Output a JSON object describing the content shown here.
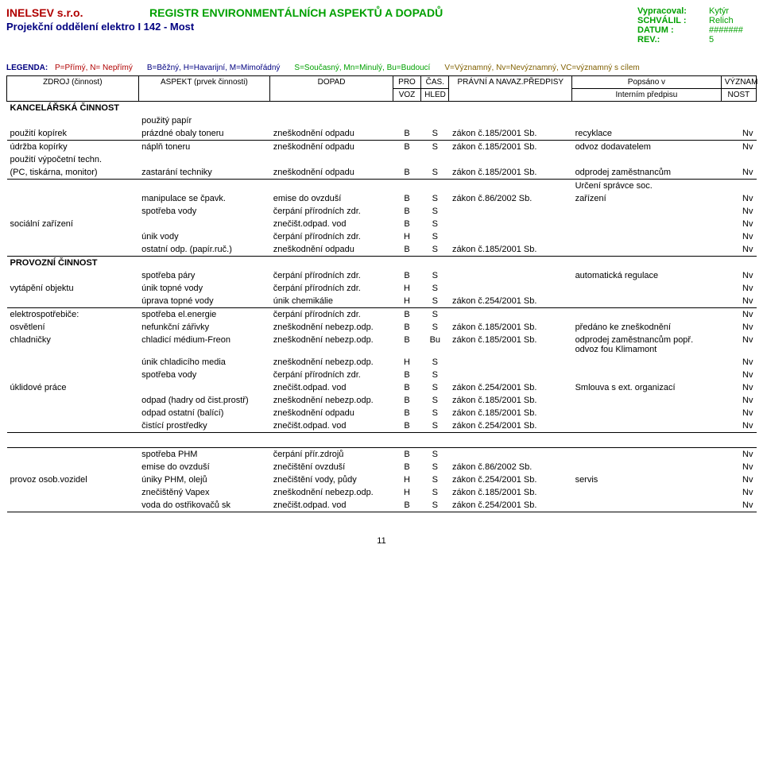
{
  "header": {
    "company": "INELSEV s.r.o.",
    "title": "REGISTR  ENVIRONMENTÁLNÍCH  ASPEKTŮ A DOPADŮ",
    "dept": "Projekční oddělení elektro I 142 - Most",
    "right": [
      {
        "lbl": "Vypracoval:",
        "val": "Kytýr"
      },
      {
        "lbl": "SCHVÁLIL :",
        "val": "Relich"
      },
      {
        "lbl": "DATUM :",
        "val": "#######"
      },
      {
        "lbl": "REV.:",
        "val": "5"
      }
    ],
    "legend_label": "LEGENDA:",
    "legend_parts": [
      {
        "cls": "red",
        "t": "P=Přímý, N= Nepřímý"
      },
      {
        "cls": "blu",
        "t": "B=Běžný, H=Havarijní, M=Mimořádný"
      },
      {
        "cls": "grn",
        "t": "S=Současný, Mn=Minulý, Bu=Budoucí"
      },
      {
        "cls": "brn",
        "t": "V=Významný, Nv=Nevýznamný, VC=významný s cílem"
      }
    ]
  },
  "thead": {
    "zdroj": "ZDROJ (činnost)",
    "aspekt": "ASPEKT (prvek činnosti)",
    "dopad": "DOPAD",
    "pro1": "PRO",
    "pro2": "VOZ",
    "cas1": "ČAS.",
    "cas2": "HLED",
    "prav": "PRÁVNÍ A NAVAZ.PŘEDPISY",
    "pops1": "Popsáno v",
    "pops2": "Interním předpisu",
    "vyz1": "VÝZNAM",
    "vyz2": "NOST"
  },
  "sections": [
    {
      "title": "KANCELÁŘSKÁ ČINNOST",
      "groups": [
        {
          "borderBottom": true,
          "rows": [
            {
              "zdroj": "",
              "aspekt": "použitý papír",
              "dopad": "",
              "pro": "",
              "cas": "",
              "prav": "",
              "pops": "",
              "vyz": ""
            },
            {
              "zdroj": "použití kopírek",
              "aspekt": "prázdné obaly toneru",
              "dopad": "zneškodnění odpadu",
              "pro": "B",
              "cas": "S",
              "prav": "zákon č.185/2001 Sb.",
              "pops": "recyklace",
              "vyz": "Nv"
            }
          ]
        },
        {
          "borderBottom": true,
          "rows": [
            {
              "zdroj": "údržba kopírky",
              "aspekt": "náplň toneru",
              "dopad": "zneškodnění odpadu",
              "pro": "B",
              "cas": "S",
              "prav": "zákon č.185/2001 Sb.",
              "pops": "odvoz dodavatelem",
              "vyz": "Nv"
            },
            {
              "zdroj": "použití výpočetní techn.",
              "aspekt": "",
              "dopad": "",
              "pro": "",
              "cas": "",
              "prav": "",
              "pops": "",
              "vyz": ""
            },
            {
              "zdroj": " (PC, tiskárna, monitor)",
              "aspekt": "zastarání techniky",
              "dopad": "zneškodnění odpadu",
              "pro": "B",
              "cas": "S",
              "prav": "zákon č.185/2001 Sb.",
              "pops": "odprodej zaměstnancům",
              "vyz": "Nv"
            }
          ]
        },
        {
          "borderBottom": true,
          "rows": [
            {
              "zdroj": "",
              "aspekt": "",
              "dopad": "",
              "pro": "",
              "cas": "",
              "prav": "",
              "pops": "Určení správce soc.",
              "vyz": ""
            },
            {
              "zdroj": "",
              "aspekt": "manipulace se čpavk.",
              "dopad": "emise do ovzduší",
              "pro": "B",
              "cas": "S",
              "prav": "zákon č.86/2002 Sb.",
              "pops": "zařízení",
              "vyz": "Nv"
            },
            {
              "zdroj": "",
              "aspekt": "spotřeba vody",
              "dopad": "čerpání přírodních zdr.",
              "pro": "B",
              "cas": "S",
              "prav": "",
              "pops": "",
              "vyz": "Nv"
            },
            {
              "zdroj": "sociální zařízení",
              "aspekt": "",
              "dopad": "znečišt.odpad. vod",
              "pro": "B",
              "cas": "S",
              "prav": "",
              "pops": "",
              "vyz": "Nv"
            },
            {
              "zdroj": "",
              "aspekt": "únik vody",
              "dopad": "čerpání přírodních zdr.",
              "pro": "H",
              "cas": "S",
              "prav": "",
              "pops": "",
              "vyz": "Nv"
            },
            {
              "zdroj": "",
              "aspekt": "ostatní odp. (papír.ruč.)",
              "dopad": "zneškodnění odpadu",
              "pro": "B",
              "cas": "S",
              "prav": "zákon č.185/2001 Sb.",
              "pops": "",
              "vyz": "Nv"
            }
          ]
        }
      ]
    },
    {
      "title": "PROVOZNÍ ČINNOST",
      "groups": [
        {
          "borderBottom": true,
          "rows": [
            {
              "zdroj": "",
              "aspekt": "spotřeba páry",
              "dopad": "čerpání přírodních zdr.",
              "pro": "B",
              "cas": "S",
              "prav": "",
              "pops": "automatická regulace",
              "vyz": "Nv"
            },
            {
              "zdroj": "vytápění objektu",
              "aspekt": "únik topné vody",
              "dopad": "čerpání přírodních zdr.",
              "pro": "H",
              "cas": "S",
              "prav": "",
              "pops": "",
              "vyz": "Nv"
            },
            {
              "zdroj": "",
              "aspekt": "úprava topné vody",
              "dopad": "únik chemikálie",
              "pro": "H",
              "cas": "S",
              "prav": "zákon č.254/2001 Sb.",
              "pops": "",
              "vyz": "Nv"
            }
          ]
        },
        {
          "borderBottom": false,
          "rows": [
            {
              "zdroj": "elektrospotřebiče:",
              "aspekt": "spotřeba el.energie",
              "dopad": "čerpání přírodních zdr.",
              "pro": "B",
              "cas": "S",
              "prav": "",
              "pops": "",
              "vyz": "Nv"
            },
            {
              "zdroj": "osvětlení",
              "aspekt": "nefunkční zářivky",
              "dopad": "zneškodnění nebezp.odp.",
              "pro": "B",
              "cas": "S",
              "prav": "zákon č.185/2001 Sb.",
              "pops": "předáno ke zneškodnění",
              "vyz": "Nv"
            }
          ]
        },
        {
          "borderBottom": true,
          "rows": [
            {
              "zdroj": "chladničky",
              "aspekt": "chladicí médium-Freon",
              "dopad": "zneškodnění nebezp.odp.",
              "pro": "B",
              "cas": "Bu",
              "prav": "zákon č.185/2001 Sb.",
              "pops": "odprodej zaměstnancům popř. odvoz fou Klimamont",
              "pops_cls": "small-note",
              "vyz": "Nv"
            },
            {
              "zdroj": "",
              "aspekt": "únik chladicího media",
              "dopad": "zneškodnění nebezp.odp.",
              "pro": "H",
              "cas": "S",
              "prav": "",
              "pops": "",
              "vyz": "Nv"
            },
            {
              "zdroj": "",
              "aspekt": "spotřeba vody",
              "dopad": "čerpání přírodních zdr.",
              "pro": "B",
              "cas": "S",
              "prav": "",
              "pops": "",
              "vyz": "Nv"
            },
            {
              "zdroj": "úklidové práce",
              "aspekt": "",
              "dopad": "znečišt.odpad. vod",
              "pro": "B",
              "cas": "S",
              "prav": "zákon č.254/2001 Sb.",
              "pops": "Smlouva s ext. organizací",
              "vyz": "Nv"
            },
            {
              "zdroj": "",
              "aspekt": "odpad  (hadry od čist.prostř)",
              "dopad": "zneškodnění nebezp.odp.",
              "pro": "B",
              "cas": "S",
              "prav": "zákon č.185/2001 Sb.",
              "pops": "",
              "vyz": "Nv"
            },
            {
              "zdroj": "",
              "aspekt": "odpad ostatní (balící)",
              "dopad": "zneškodnění odpadu",
              "pro": "B",
              "cas": "S",
              "prav": "zákon č.185/2001 Sb.",
              "pops": "",
              "vyz": "Nv"
            },
            {
              "zdroj": "",
              "aspekt": "čistící prostředky",
              "dopad": "znečišt.odpad. vod",
              "pro": "B",
              "cas": "S",
              "prav": "zákon č.254/2001 Sb.",
              "pops": "",
              "vyz": "Nv"
            }
          ]
        },
        {
          "borderTop": true,
          "borderBottom": true,
          "gapBefore": true,
          "rows": [
            {
              "zdroj": "",
              "aspekt": "spotřeba PHM",
              "dopad": "čerpání přír.zdrojů",
              "pro": "B",
              "cas": "S",
              "prav": "",
              "pops": "",
              "vyz": "Nv"
            },
            {
              "zdroj": "",
              "aspekt": "emise do ovzduší",
              "dopad": "znečištění ovzduší",
              "pro": "B",
              "cas": "S",
              "prav": "zákon č.86/2002 Sb.",
              "pops": "",
              "vyz": "Nv"
            },
            {
              "zdroj": "provoz osob.vozidel",
              "aspekt": "úniky PHM, olejů",
              "dopad": "znečištění vody, půdy",
              "pro": "H",
              "cas": "S",
              "prav": "zákon č.254/2001 Sb.",
              "pops": "servis",
              "vyz": "Nv"
            },
            {
              "zdroj": "",
              "aspekt": "znečištěný Vapex",
              "dopad": "zneškodnění nebezp.odp.",
              "pro": "H",
              "cas": "S",
              "prav": "zákon č.185/2001 Sb.",
              "pops": "",
              "vyz": "Nv"
            },
            {
              "zdroj": "",
              "aspekt": "voda do ostřikovačů sk",
              "dopad": "znečišt.odpad. vod",
              "pro": "B",
              "cas": "S",
              "prav": "zákon č.254/2001 Sb.",
              "pops": "",
              "vyz": "Nv"
            }
          ]
        }
      ]
    }
  ],
  "page_number": "11"
}
